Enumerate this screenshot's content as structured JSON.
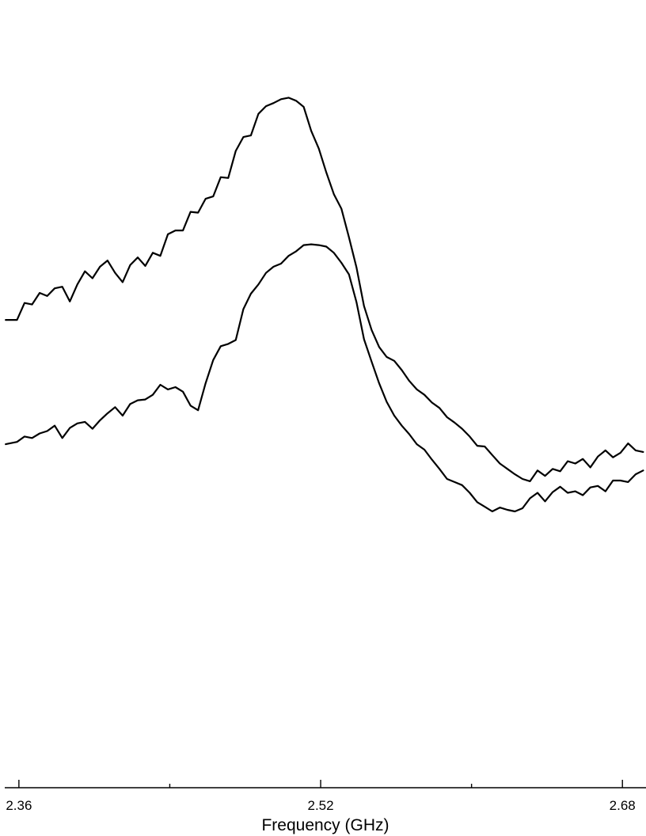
{
  "chart_data": {
    "type": "line",
    "title": "",
    "xlabel": "Frequency (GHz)",
    "ylabel": "",
    "xlim": [
      2.3525,
      2.6925
    ],
    "ylim": [
      0,
      1
    ],
    "x_major_ticks": [
      2.36,
      2.52,
      2.68
    ],
    "x_tick_labels": [
      "2.36",
      "2.52",
      "2.68"
    ],
    "x_minor_ticks": [
      2.44,
      2.6
    ],
    "grid": false,
    "legend": "none",
    "line_color": "#000000",
    "series": [
      {
        "points": [
          [
            2.353,
            0.606
          ],
          [
            2.359,
            0.606
          ],
          [
            2.363,
            0.628
          ],
          [
            2.367,
            0.626
          ],
          [
            2.371,
            0.641
          ],
          [
            2.375,
            0.637
          ],
          [
            2.379,
            0.647
          ],
          [
            2.383,
            0.649
          ],
          [
            2.387,
            0.63
          ],
          [
            2.391,
            0.652
          ],
          [
            2.395,
            0.669
          ],
          [
            2.399,
            0.66
          ],
          [
            2.403,
            0.675
          ],
          [
            2.407,
            0.683
          ],
          [
            2.411,
            0.667
          ],
          [
            2.415,
            0.655
          ],
          [
            2.419,
            0.677
          ],
          [
            2.423,
            0.687
          ],
          [
            2.427,
            0.676
          ],
          [
            2.431,
            0.693
          ],
          [
            2.435,
            0.689
          ],
          [
            2.439,
            0.717
          ],
          [
            2.443,
            0.722
          ],
          [
            2.447,
            0.722
          ],
          [
            2.451,
            0.746
          ],
          [
            2.455,
            0.745
          ],
          [
            2.459,
            0.763
          ],
          [
            2.463,
            0.766
          ],
          [
            2.467,
            0.791
          ],
          [
            2.471,
            0.79
          ],
          [
            2.475,
            0.825
          ],
          [
            2.479,
            0.843
          ],
          [
            2.483,
            0.845
          ],
          [
            2.487,
            0.873
          ],
          [
            2.491,
            0.883
          ],
          [
            2.495,
            0.887
          ],
          [
            2.499,
            0.892
          ],
          [
            2.503,
            0.894
          ],
          [
            2.507,
            0.89
          ],
          [
            2.511,
            0.882
          ],
          [
            2.515,
            0.851
          ],
          [
            2.519,
            0.828
          ],
          [
            2.523,
            0.797
          ],
          [
            2.527,
            0.769
          ],
          [
            2.531,
            0.75
          ],
          [
            2.535,
            0.713
          ],
          [
            2.539,
            0.674
          ],
          [
            2.543,
            0.624
          ],
          [
            2.547,
            0.593
          ],
          [
            2.551,
            0.571
          ],
          [
            2.555,
            0.558
          ],
          [
            2.559,
            0.553
          ],
          [
            2.563,
            0.541
          ],
          [
            2.567,
            0.527
          ],
          [
            2.571,
            0.516
          ],
          [
            2.575,
            0.509
          ],
          [
            2.579,
            0.499
          ],
          [
            2.583,
            0.492
          ],
          [
            2.587,
            0.48
          ],
          [
            2.591,
            0.473
          ],
          [
            2.595,
            0.465
          ],
          [
            2.599,
            0.455
          ],
          [
            2.603,
            0.443
          ],
          [
            2.607,
            0.442
          ],
          [
            2.611,
            0.431
          ],
          [
            2.615,
            0.42
          ],
          [
            2.619,
            0.413
          ],
          [
            2.623,
            0.406
          ],
          [
            2.627,
            0.4
          ],
          [
            2.631,
            0.397
          ],
          [
            2.635,
            0.411
          ],
          [
            2.639,
            0.404
          ],
          [
            2.643,
            0.413
          ],
          [
            2.647,
            0.41
          ],
          [
            2.651,
            0.423
          ],
          [
            2.655,
            0.42
          ],
          [
            2.659,
            0.426
          ],
          [
            2.663,
            0.415
          ],
          [
            2.667,
            0.429
          ],
          [
            2.671,
            0.437
          ],
          [
            2.675,
            0.428
          ],
          [
            2.679,
            0.434
          ],
          [
            2.683,
            0.446
          ],
          [
            2.687,
            0.437
          ],
          [
            2.691,
            0.435
          ]
        ]
      },
      {
        "points": [
          [
            2.353,
            0.445
          ],
          [
            2.359,
            0.448
          ],
          [
            2.363,
            0.455
          ],
          [
            2.367,
            0.453
          ],
          [
            2.371,
            0.459
          ],
          [
            2.375,
            0.462
          ],
          [
            2.379,
            0.469
          ],
          [
            2.383,
            0.453
          ],
          [
            2.387,
            0.466
          ],
          [
            2.391,
            0.472
          ],
          [
            2.395,
            0.474
          ],
          [
            2.399,
            0.465
          ],
          [
            2.403,
            0.476
          ],
          [
            2.407,
            0.485
          ],
          [
            2.411,
            0.493
          ],
          [
            2.415,
            0.482
          ],
          [
            2.419,
            0.497
          ],
          [
            2.423,
            0.502
          ],
          [
            2.427,
            0.503
          ],
          [
            2.431,
            0.509
          ],
          [
            2.435,
            0.522
          ],
          [
            2.439,
            0.516
          ],
          [
            2.443,
            0.519
          ],
          [
            2.447,
            0.513
          ],
          [
            2.451,
            0.495
          ],
          [
            2.455,
            0.489
          ],
          [
            2.459,
            0.524
          ],
          [
            2.463,
            0.554
          ],
          [
            2.467,
            0.572
          ],
          [
            2.471,
            0.575
          ],
          [
            2.475,
            0.58
          ],
          [
            2.479,
            0.62
          ],
          [
            2.483,
            0.64
          ],
          [
            2.487,
            0.652
          ],
          [
            2.491,
            0.667
          ],
          [
            2.495,
            0.675
          ],
          [
            2.499,
            0.679
          ],
          [
            2.503,
            0.689
          ],
          [
            2.507,
            0.695
          ],
          [
            2.511,
            0.703
          ],
          [
            2.515,
            0.704
          ],
          [
            2.519,
            0.703
          ],
          [
            2.523,
            0.701
          ],
          [
            2.527,
            0.693
          ],
          [
            2.531,
            0.68
          ],
          [
            2.535,
            0.665
          ],
          [
            2.539,
            0.629
          ],
          [
            2.543,
            0.581
          ],
          [
            2.547,
            0.552
          ],
          [
            2.551,
            0.524
          ],
          [
            2.555,
            0.5
          ],
          [
            2.559,
            0.482
          ],
          [
            2.563,
            0.469
          ],
          [
            2.567,
            0.458
          ],
          [
            2.571,
            0.445
          ],
          [
            2.575,
            0.438
          ],
          [
            2.579,
            0.425
          ],
          [
            2.583,
            0.413
          ],
          [
            2.587,
            0.4
          ],
          [
            2.591,
            0.396
          ],
          [
            2.595,
            0.392
          ],
          [
            2.599,
            0.382
          ],
          [
            2.603,
            0.37
          ],
          [
            2.607,
            0.364
          ],
          [
            2.611,
            0.358
          ],
          [
            2.615,
            0.363
          ],
          [
            2.619,
            0.36
          ],
          [
            2.623,
            0.358
          ],
          [
            2.627,
            0.362
          ],
          [
            2.631,
            0.375
          ],
          [
            2.635,
            0.382
          ],
          [
            2.639,
            0.371
          ],
          [
            2.643,
            0.383
          ],
          [
            2.647,
            0.39
          ],
          [
            2.651,
            0.382
          ],
          [
            2.655,
            0.384
          ],
          [
            2.659,
            0.379
          ],
          [
            2.663,
            0.389
          ],
          [
            2.667,
            0.391
          ],
          [
            2.671,
            0.384
          ],
          [
            2.675,
            0.398
          ],
          [
            2.679,
            0.398
          ],
          [
            2.683,
            0.396
          ],
          [
            2.687,
            0.406
          ],
          [
            2.691,
            0.411
          ]
        ]
      }
    ]
  }
}
